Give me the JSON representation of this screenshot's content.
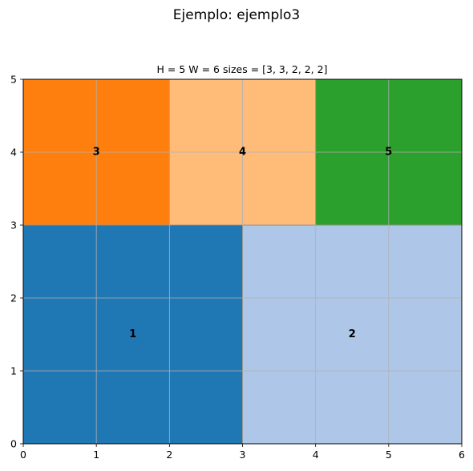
{
  "figure": {
    "suptitle": "Ejemplo: ejemplo3"
  },
  "chart_data": {
    "type": "rectangle-packing",
    "title": "H = 5   W = 6   sizes = [3, 3, 2, 2, 2]",
    "xlim": [
      0,
      6
    ],
    "ylim": [
      0,
      5
    ],
    "xticks": [
      "0",
      "1",
      "2",
      "3",
      "4",
      "5",
      "6"
    ],
    "yticks": [
      "0",
      "1",
      "2",
      "3",
      "4",
      "5"
    ],
    "grid": true,
    "rectangles": [
      {
        "label": "1",
        "x": 0,
        "y": 0,
        "w": 3,
        "h": 3,
        "color": "#1f77b4"
      },
      {
        "label": "2",
        "x": 3,
        "y": 0,
        "w": 3,
        "h": 3,
        "color": "#aec7e8"
      },
      {
        "label": "3",
        "x": 0,
        "y": 3,
        "w": 2,
        "h": 2,
        "color": "#ff7f0e"
      },
      {
        "label": "4",
        "x": 2,
        "y": 3,
        "w": 2,
        "h": 2,
        "color": "#ffbb78"
      },
      {
        "label": "5",
        "x": 4,
        "y": 3,
        "w": 2,
        "h": 2,
        "color": "#2ca02c"
      }
    ]
  }
}
